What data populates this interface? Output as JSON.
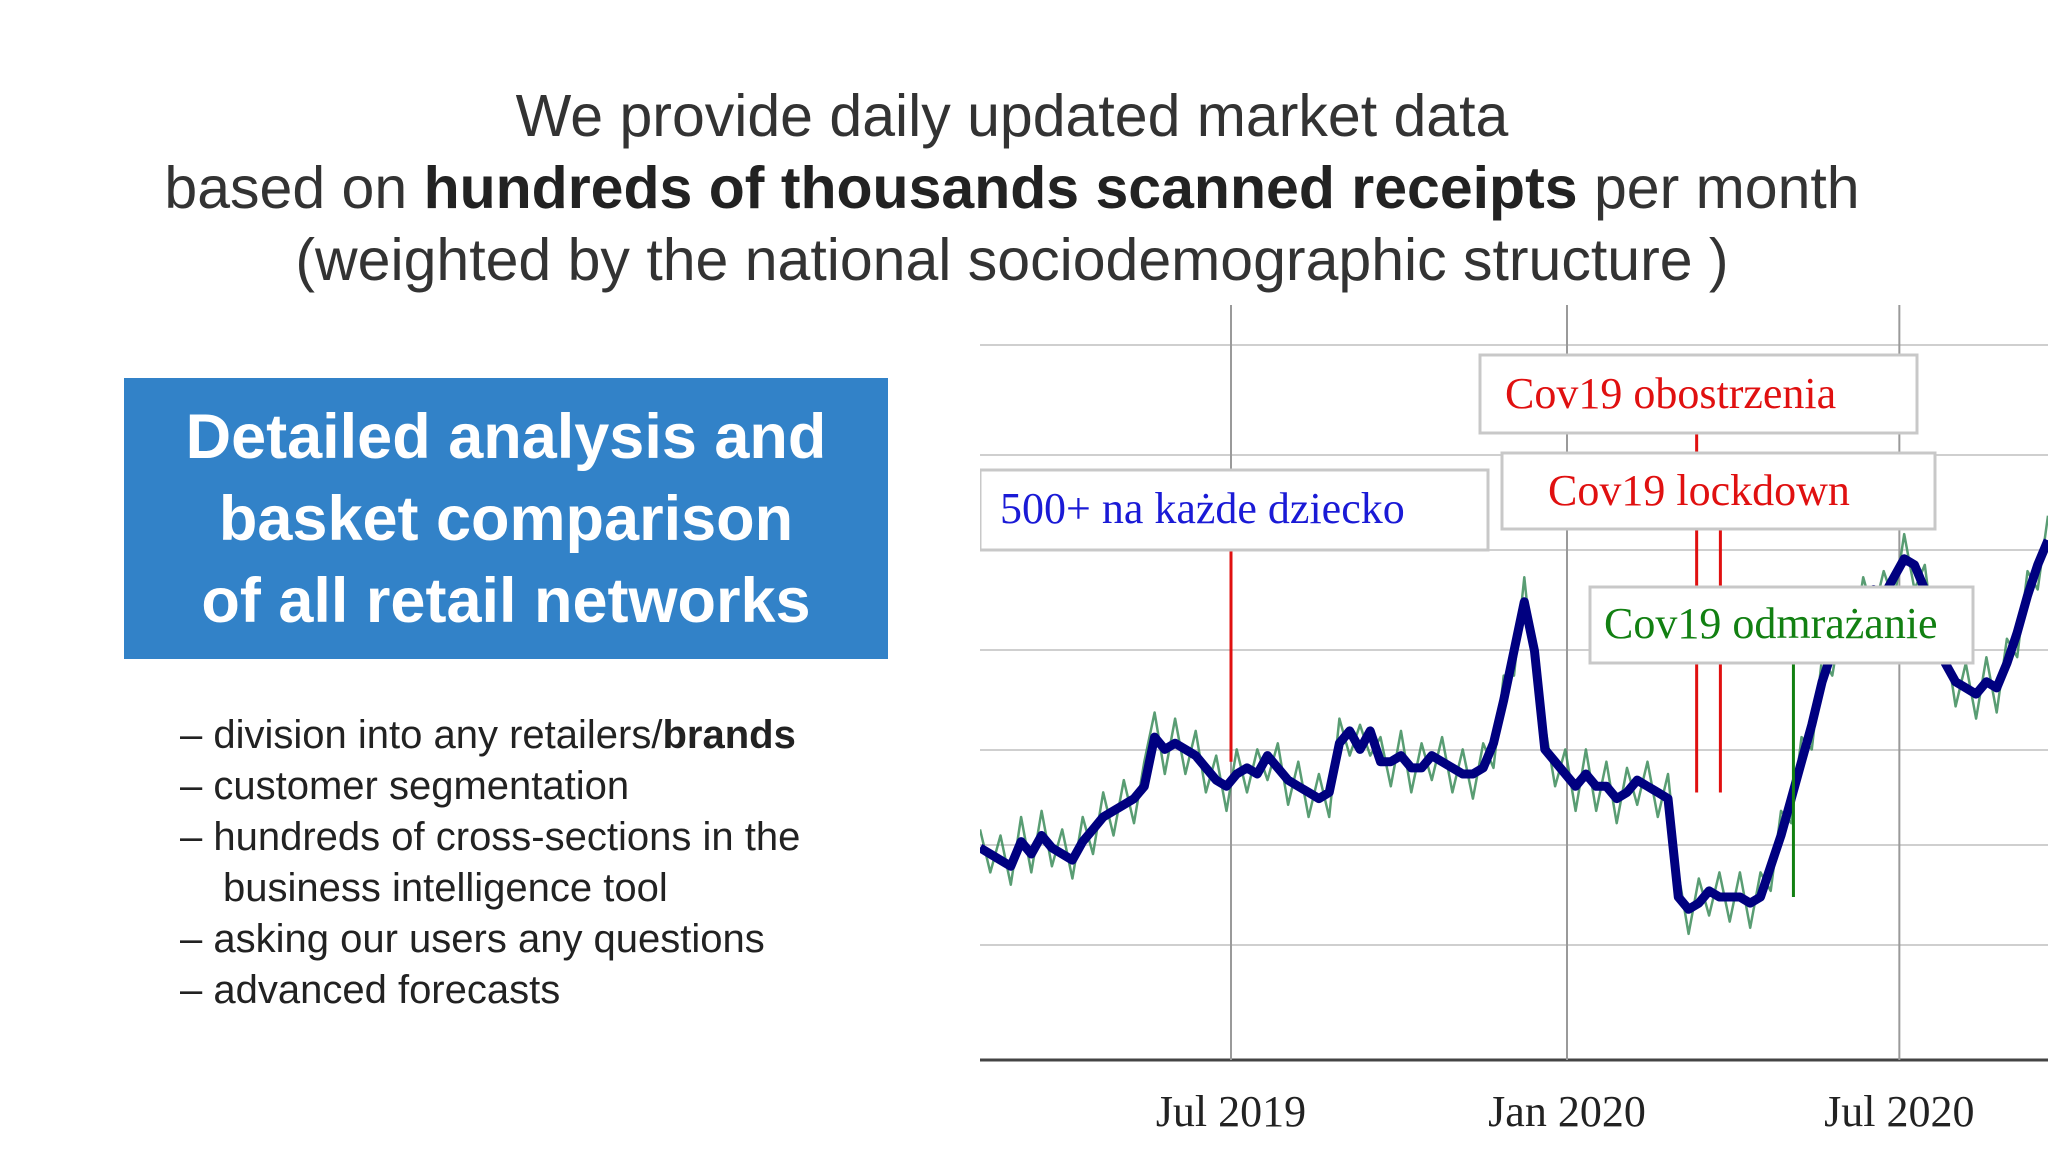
{
  "headline": {
    "line1": "We provide daily updated market data",
    "line2_prefix": "based on ",
    "line2_bold": "hundreds of thousands scanned receipts",
    "line2_suffix": " per month",
    "line3": "(weighted by the national sociodemographic structure )"
  },
  "box": {
    "line1": "Detailed analysis and",
    "line2": "basket comparison",
    "line3": "of all retail networks"
  },
  "features": {
    "item1_prefix": "– division into any retailers/",
    "item1_bold": "brands",
    "item2": "– customer segmentation",
    "item3a": "– hundreds of cross-sections in the",
    "item3b": "business intelligence tool",
    "item4": "– asking our users any questions",
    "item5": "– advanced forecasts"
  },
  "chart_data": {
    "type": "line",
    "x_ticks": [
      "Jul 2019",
      "Jan 2020",
      "Jul 2020"
    ],
    "annotations": [
      {
        "label": "500+ na każde dziecko",
        "date": "2019-07-01",
        "color": "#1a1ad6"
      },
      {
        "label": "Cov19 obostrzenia",
        "date": "2020-03-12",
        "color": "#e01010"
      },
      {
        "label": "Cov19 lockdown",
        "date": "2020-03-25",
        "color": "#e01010"
      },
      {
        "label": "Cov19 odmrażanie",
        "date": "2020-05-04",
        "color": "#128012"
      }
    ],
    "series": [
      {
        "color": "#000080",
        "values": [
          28,
          27,
          26,
          25,
          29,
          27,
          30,
          28,
          27,
          26,
          29,
          31,
          33,
          34,
          35,
          36,
          38,
          46,
          44,
          45,
          44,
          43,
          41,
          39,
          38,
          40,
          41,
          40,
          43,
          41,
          39,
          38,
          37,
          36,
          37,
          45,
          47,
          44,
          47,
          42,
          42,
          43,
          41,
          41,
          43,
          42,
          41,
          40,
          40,
          41,
          45,
          52,
          60,
          68,
          60,
          44,
          42,
          40,
          38,
          40,
          38,
          38,
          36,
          37,
          39,
          38,
          37,
          36,
          20,
          18,
          19,
          21,
          20,
          20,
          20,
          19,
          20,
          25,
          30,
          36,
          42,
          48,
          55,
          60,
          62,
          65,
          68,
          70,
          69,
          72,
          75,
          74,
          70,
          65,
          58,
          55,
          54,
          53,
          55,
          54,
          58,
          63,
          69,
          74,
          78
        ]
      },
      {
        "color": "#3c8c5a",
        "values": [
          31,
          24,
          30,
          22,
          33,
          24,
          34,
          25,
          31,
          23,
          33,
          27,
          37,
          30,
          39,
          32,
          42,
          50,
          40,
          49,
          40,
          47,
          37,
          43,
          34,
          44,
          37,
          44,
          39,
          45,
          35,
          42,
          33,
          40,
          33,
          49,
          43,
          48,
          43,
          46,
          38,
          47,
          37,
          45,
          39,
          46,
          37,
          44,
          36,
          45,
          41,
          56,
          56,
          72,
          56,
          48,
          38,
          44,
          34,
          44,
          34,
          42,
          32,
          41,
          35,
          42,
          33,
          40,
          24,
          14,
          23,
          17,
          24,
          16,
          24,
          15,
          24,
          21,
          34,
          32,
          46,
          44,
          59,
          56,
          66,
          61,
          72,
          66,
          73,
          68,
          79,
          70,
          74,
          61,
          62,
          51,
          58,
          49,
          59,
          50,
          62,
          59,
          73,
          70,
          82
        ]
      }
    ]
  }
}
